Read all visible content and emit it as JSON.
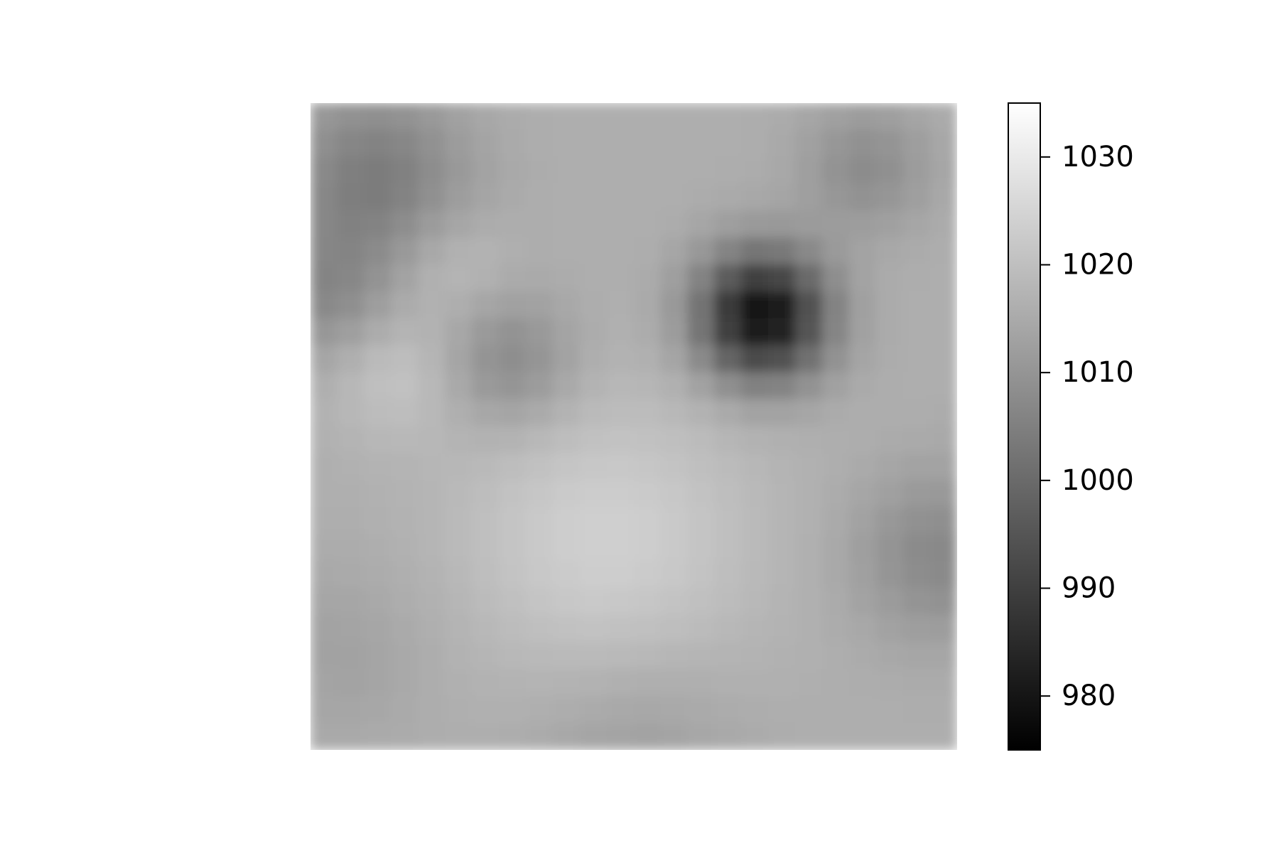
{
  "chart_data": {
    "type": "heatmap",
    "title": "",
    "xlabel": "",
    "ylabel": "",
    "axes_visible": false,
    "colormap": "gray",
    "colormap_stops": [
      "#000000",
      "#ffffff"
    ],
    "value_range": [
      975,
      1035
    ],
    "colorbar": {
      "orientation": "vertical",
      "placement": "right",
      "ticks": [
        980,
        990,
        1000,
        1010,
        1020,
        1030
      ],
      "tick_labels": [
        "980",
        "990",
        "1000",
        "1010",
        "1020",
        "1030"
      ]
    },
    "grid_size": [
      24,
      24
    ],
    "background_value": 1016,
    "features": [
      {
        "kind": "low",
        "label": "deep low (center-right)",
        "cx": 0.7,
        "cy": 0.33,
        "sigma": 0.07,
        "amplitude": -38
      },
      {
        "kind": "low",
        "label": "low (upper-left)",
        "cx": 0.1,
        "cy": 0.12,
        "sigma": 0.1,
        "amplitude": -12
      },
      {
        "kind": "low",
        "label": "low (left edge)",
        "cx": 0.02,
        "cy": 0.3,
        "sigma": 0.07,
        "amplitude": -8
      },
      {
        "kind": "low",
        "label": "low (upper-right)",
        "cx": 0.86,
        "cy": 0.1,
        "sigma": 0.07,
        "amplitude": -8
      },
      {
        "kind": "low",
        "label": "low (left-center)",
        "cx": 0.31,
        "cy": 0.4,
        "sigma": 0.07,
        "amplitude": -9
      },
      {
        "kind": "low",
        "label": "low (right edge)",
        "cx": 0.97,
        "cy": 0.7,
        "sigma": 0.09,
        "amplitude": -9
      },
      {
        "kind": "high",
        "label": "high (lower-center)",
        "cx": 0.46,
        "cy": 0.68,
        "sigma": 0.16,
        "amplitude": 8
      },
      {
        "kind": "high",
        "label": "high (left)",
        "cx": 0.13,
        "cy": 0.42,
        "sigma": 0.07,
        "amplitude": 5
      },
      {
        "kind": "high",
        "label": "high (upper-left-center)",
        "cx": 0.22,
        "cy": 0.25,
        "sigma": 0.06,
        "amplitude": 4
      },
      {
        "kind": "low",
        "label": "lower band",
        "cx": 0.5,
        "cy": 1.0,
        "sigma": 0.12,
        "amplitude": -4
      },
      {
        "kind": "low",
        "label": "lower-left",
        "cx": 0.05,
        "cy": 0.85,
        "sigma": 0.1,
        "amplitude": -3
      }
    ]
  }
}
